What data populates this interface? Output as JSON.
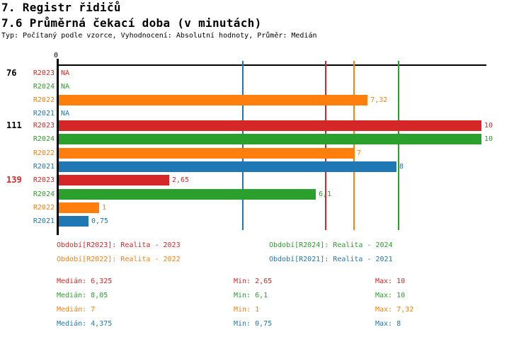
{
  "header": {
    "title": "7. Registr řidičů",
    "subtitle": "7.6 Průměrná čekací doba (v minutách)",
    "meta": "Typ: Počítaný podle vzorce, Vyhodnocení: Absolutní hodnoty, Průměr: Medián"
  },
  "colors": {
    "R2023": "#d62728",
    "R2024": "#2ca02c",
    "R2022": "#ff7f0e",
    "R2021": "#1f77b4",
    "axis": "#000000",
    "group_label_default": "#000000",
    "group_label_alert": "#d62728"
  },
  "chart_data": {
    "type": "bar",
    "orientation": "horizontal",
    "title": "7.6 Průměrná čekací doba (v minutách)",
    "x_axis": {
      "zero_label": "0",
      "min": 0,
      "max": 10.1,
      "gridlines": false
    },
    "series": [
      {
        "id": "R2023",
        "name": "Realita - 2023",
        "color": "#d62728"
      },
      {
        "id": "R2024",
        "name": "Realita - 2024",
        "color": "#2ca02c"
      },
      {
        "id": "R2022",
        "name": "Realita - 2022",
        "color": "#ff7f0e"
      },
      {
        "id": "R2021",
        "name": "Realita - 2021",
        "color": "#1f77b4"
      }
    ],
    "row_order": [
      "R2023",
      "R2024",
      "R2022",
      "R2021"
    ],
    "groups": [
      {
        "label": "76",
        "label_color": "#000000",
        "bars": [
          {
            "series": "R2023",
            "value": null,
            "display": "NA"
          },
          {
            "series": "R2024",
            "value": null,
            "display": "NA"
          },
          {
            "series": "R2022",
            "value": 7.32,
            "display": "7,32"
          },
          {
            "series": "R2021",
            "value": null,
            "display": "NA"
          }
        ]
      },
      {
        "label": "111",
        "label_color": "#000000",
        "bars": [
          {
            "series": "R2023",
            "value": 10,
            "display": "10"
          },
          {
            "series": "R2024",
            "value": 10,
            "display": "10"
          },
          {
            "series": "R2022",
            "value": 7,
            "display": "7"
          },
          {
            "series": "R2021",
            "value": 8,
            "display": "8"
          }
        ]
      },
      {
        "label": "139",
        "label_color": "#d62728",
        "bars": [
          {
            "series": "R2023",
            "value": 2.65,
            "display": "2,65"
          },
          {
            "series": "R2024",
            "value": 6.1,
            "display": "6,1"
          },
          {
            "series": "R2022",
            "value": 1,
            "display": "1"
          },
          {
            "series": "R2021",
            "value": 0.75,
            "display": "0,75"
          }
        ]
      }
    ],
    "median_lines": [
      {
        "series": "R2021",
        "value": 4.375
      },
      {
        "series": "R2023",
        "value": 6.325
      },
      {
        "series": "R2022",
        "value": 7
      },
      {
        "series": "R2024",
        "value": 8.05
      }
    ]
  },
  "legend": {
    "items": [
      {
        "series": "R2023",
        "label": "Období[R2023]: Realita - 2023",
        "col": 0,
        "row": 0
      },
      {
        "series": "R2024",
        "label": "Období[R2024]: Realita - 2024",
        "col": 1,
        "row": 0
      },
      {
        "series": "R2022",
        "label": "Období[R2022]: Realita - 2022",
        "col": 0,
        "row": 1
      },
      {
        "series": "R2021",
        "label": "Období[R2021]: Realita - 2021",
        "col": 1,
        "row": 1
      }
    ]
  },
  "stats": {
    "rows": [
      {
        "series": "R2023",
        "median": "Medián: 6,325",
        "min": "Min: 2,65",
        "max": "Max: 10"
      },
      {
        "series": "R2024",
        "median": "Medián: 8,05",
        "min": "Min: 6,1",
        "max": "Max: 10"
      },
      {
        "series": "R2022",
        "median": "Medián: 7",
        "min": "Min: 1",
        "max": "Max: 7,32"
      },
      {
        "series": "R2021",
        "median": "Medián: 4,375",
        "min": "Min: 0,75",
        "max": "Max: 8"
      }
    ]
  }
}
